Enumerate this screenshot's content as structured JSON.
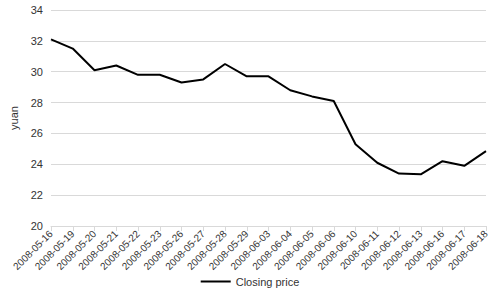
{
  "chart_data": {
    "type": "line",
    "y_label": "yuan",
    "categories": [
      "2008-05-16",
      "2008-05-19",
      "2008-05-20",
      "2008-05-21",
      "2008-05-22",
      "2008-05-23",
      "2008-05-26",
      "2008-05-27",
      "2008-05-28",
      "2008-05-29",
      "2008-06-03",
      "2008-06-04",
      "2008-06-05",
      "2008-06-06",
      "2008-06-10",
      "2008-06-11",
      "2008-06-12",
      "2008-06-13",
      "2008-06-16",
      "2008-06-17",
      "2008-06-18"
    ],
    "series": [
      {
        "name": "Closing price",
        "color": "#000000",
        "values": [
          32.1,
          31.5,
          30.1,
          30.4,
          29.8,
          29.8,
          29.3,
          29.5,
          30.5,
          29.7,
          29.7,
          28.8,
          28.4,
          28.1,
          25.3,
          24.1,
          23.4,
          23.35,
          24.2,
          23.9,
          24.85
        ]
      }
    ],
    "ylim": [
      20,
      34
    ],
    "yticks": [
      20,
      22,
      24,
      26,
      28,
      30,
      32,
      34
    ],
    "grid": true,
    "legend": "bottom"
  }
}
